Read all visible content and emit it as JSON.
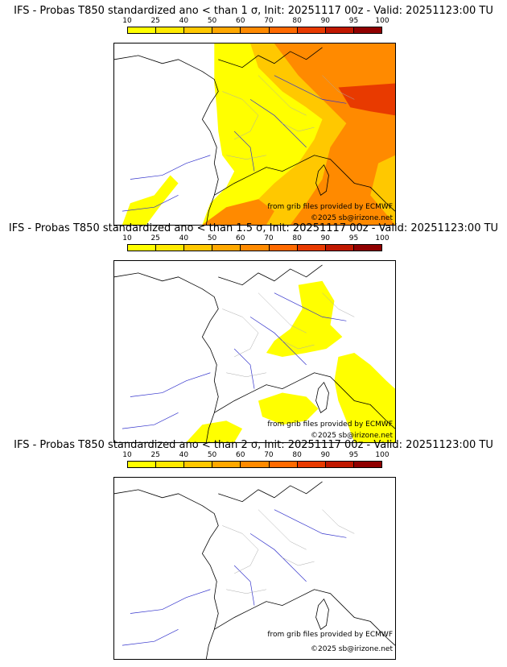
{
  "colors": {
    "c10": "#ffff00",
    "c25": "#ffea00",
    "c40": "#ffc800",
    "c50": "#ffa800",
    "c60": "#ff8a00",
    "c70": "#ff6a00",
    "c80": "#e83a00",
    "c90": "#c01800",
    "c95": "#900000",
    "c100": "#600000",
    "coast": "#000000",
    "river": "#3333cc",
    "border": "#aaaaaa"
  },
  "scale_labels": [
    "10",
    "25",
    "40",
    "50",
    "60",
    "70",
    "80",
    "90",
    "95",
    "100"
  ],
  "panels": [
    {
      "title": "IFS - Probas T850  standardized ano < than 1 σ, Init: 20251117 00z - Valid: 20251123:00 TU",
      "source": "from grib files provided by ECMWF",
      "copyright": "©2025 sb@irizone.net"
    },
    {
      "title": "IFS - Probas T850  standardized ano < than 1.5 σ, Init: 20251117 00z - Valid: 20251123:00 TU",
      "source": "from grib files provided by ECMWF",
      "copyright": "©2025 sb@irizone.net"
    },
    {
      "title": "IFS - Probas T850  standardized ano < than 2 σ, Init: 20251117 00z - Valid: 20251123:00 TU",
      "source": "from grib files provided by ECMWF",
      "copyright": "©2025 sb@irizone.net"
    }
  ]
}
